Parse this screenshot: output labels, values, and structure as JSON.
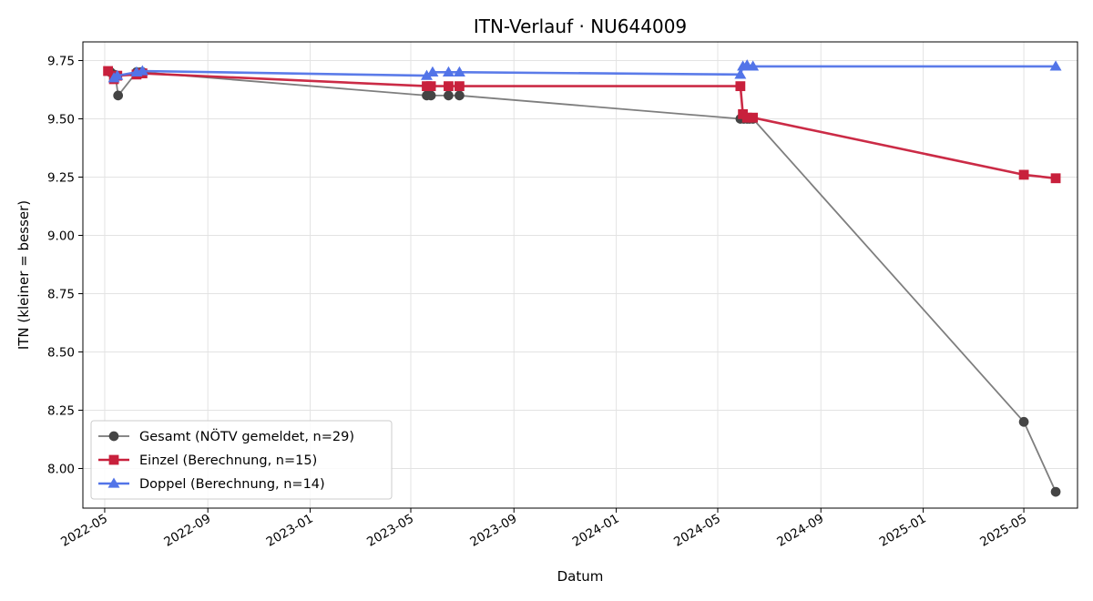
{
  "chart_data": {
    "type": "line",
    "title": "ITN-Verlauf · NU644009",
    "xlabel": "Datum",
    "ylabel": "ITN  (kleiner = besser)",
    "xlim": [
      "2022-04-05",
      "2025-07-04"
    ],
    "ylim": [
      7.83,
      9.83
    ],
    "x_ticks": [
      "2022-05",
      "2022-09",
      "2023-01",
      "2023-05",
      "2023-09",
      "2024-01",
      "2024-05",
      "2024-09",
      "2025-01",
      "2025-05"
    ],
    "y_ticks": [
      8.0,
      8.25,
      8.5,
      8.75,
      9.0,
      9.25,
      9.5,
      9.75
    ],
    "grid": true,
    "legend_position": "lower-left",
    "series": [
      {
        "name": "Gesamt (NÖTV gemeldet, n=29)",
        "color": "#777777",
        "marker": "circle",
        "points": [
          [
            "2022-05-08",
            9.7
          ],
          [
            "2022-05-12",
            9.69
          ],
          [
            "2022-05-14",
            9.68
          ],
          [
            "2022-05-17",
            9.6
          ],
          [
            "2022-06-08",
            9.7
          ],
          [
            "2022-06-13",
            9.7
          ],
          [
            "2022-06-15",
            9.7
          ],
          [
            "2023-05-20",
            9.6
          ],
          [
            "2023-05-25",
            9.6
          ],
          [
            "2023-06-15",
            9.6
          ],
          [
            "2023-06-28",
            9.6
          ],
          [
            "2024-05-28",
            9.5
          ],
          [
            "2024-06-01",
            9.5
          ],
          [
            "2024-06-05",
            9.5
          ],
          [
            "2024-06-08",
            9.5
          ],
          [
            "2024-06-12",
            9.5
          ],
          [
            "2025-05-01",
            8.2
          ],
          [
            "2025-06-08",
            7.9
          ]
        ]
      },
      {
        "name": "Einzel (Berechnung, n=15)",
        "color": "#c8203c",
        "marker": "square",
        "points": [
          [
            "2022-05-05",
            9.705
          ],
          [
            "2022-05-12",
            9.67
          ],
          [
            "2022-05-16",
            9.685
          ],
          [
            "2022-06-08",
            9.69
          ],
          [
            "2022-06-15",
            9.695
          ],
          [
            "2023-05-20",
            9.64
          ],
          [
            "2023-05-25",
            9.64
          ],
          [
            "2023-06-15",
            9.64
          ],
          [
            "2023-06-28",
            9.64
          ],
          [
            "2024-05-28",
            9.64
          ],
          [
            "2024-05-31",
            9.52
          ],
          [
            "2024-06-05",
            9.505
          ],
          [
            "2024-06-12",
            9.505
          ],
          [
            "2025-05-01",
            9.26
          ],
          [
            "2025-06-08",
            9.245
          ]
        ]
      },
      {
        "name": "Doppel (Berechnung, n=14)",
        "color": "#5274e8",
        "marker": "triangle",
        "points": [
          [
            "2022-05-12",
            9.675
          ],
          [
            "2022-05-16",
            9.685
          ],
          [
            "2022-06-08",
            9.7
          ],
          [
            "2022-06-15",
            9.705
          ],
          [
            "2023-05-20",
            9.685
          ],
          [
            "2023-05-27",
            9.7
          ],
          [
            "2023-06-15",
            9.7
          ],
          [
            "2023-06-28",
            9.7
          ],
          [
            "2024-05-28",
            9.69
          ],
          [
            "2024-05-31",
            9.725
          ],
          [
            "2024-06-05",
            9.73
          ],
          [
            "2024-06-12",
            9.725
          ],
          [
            "2025-06-08",
            9.725
          ]
        ]
      }
    ]
  }
}
